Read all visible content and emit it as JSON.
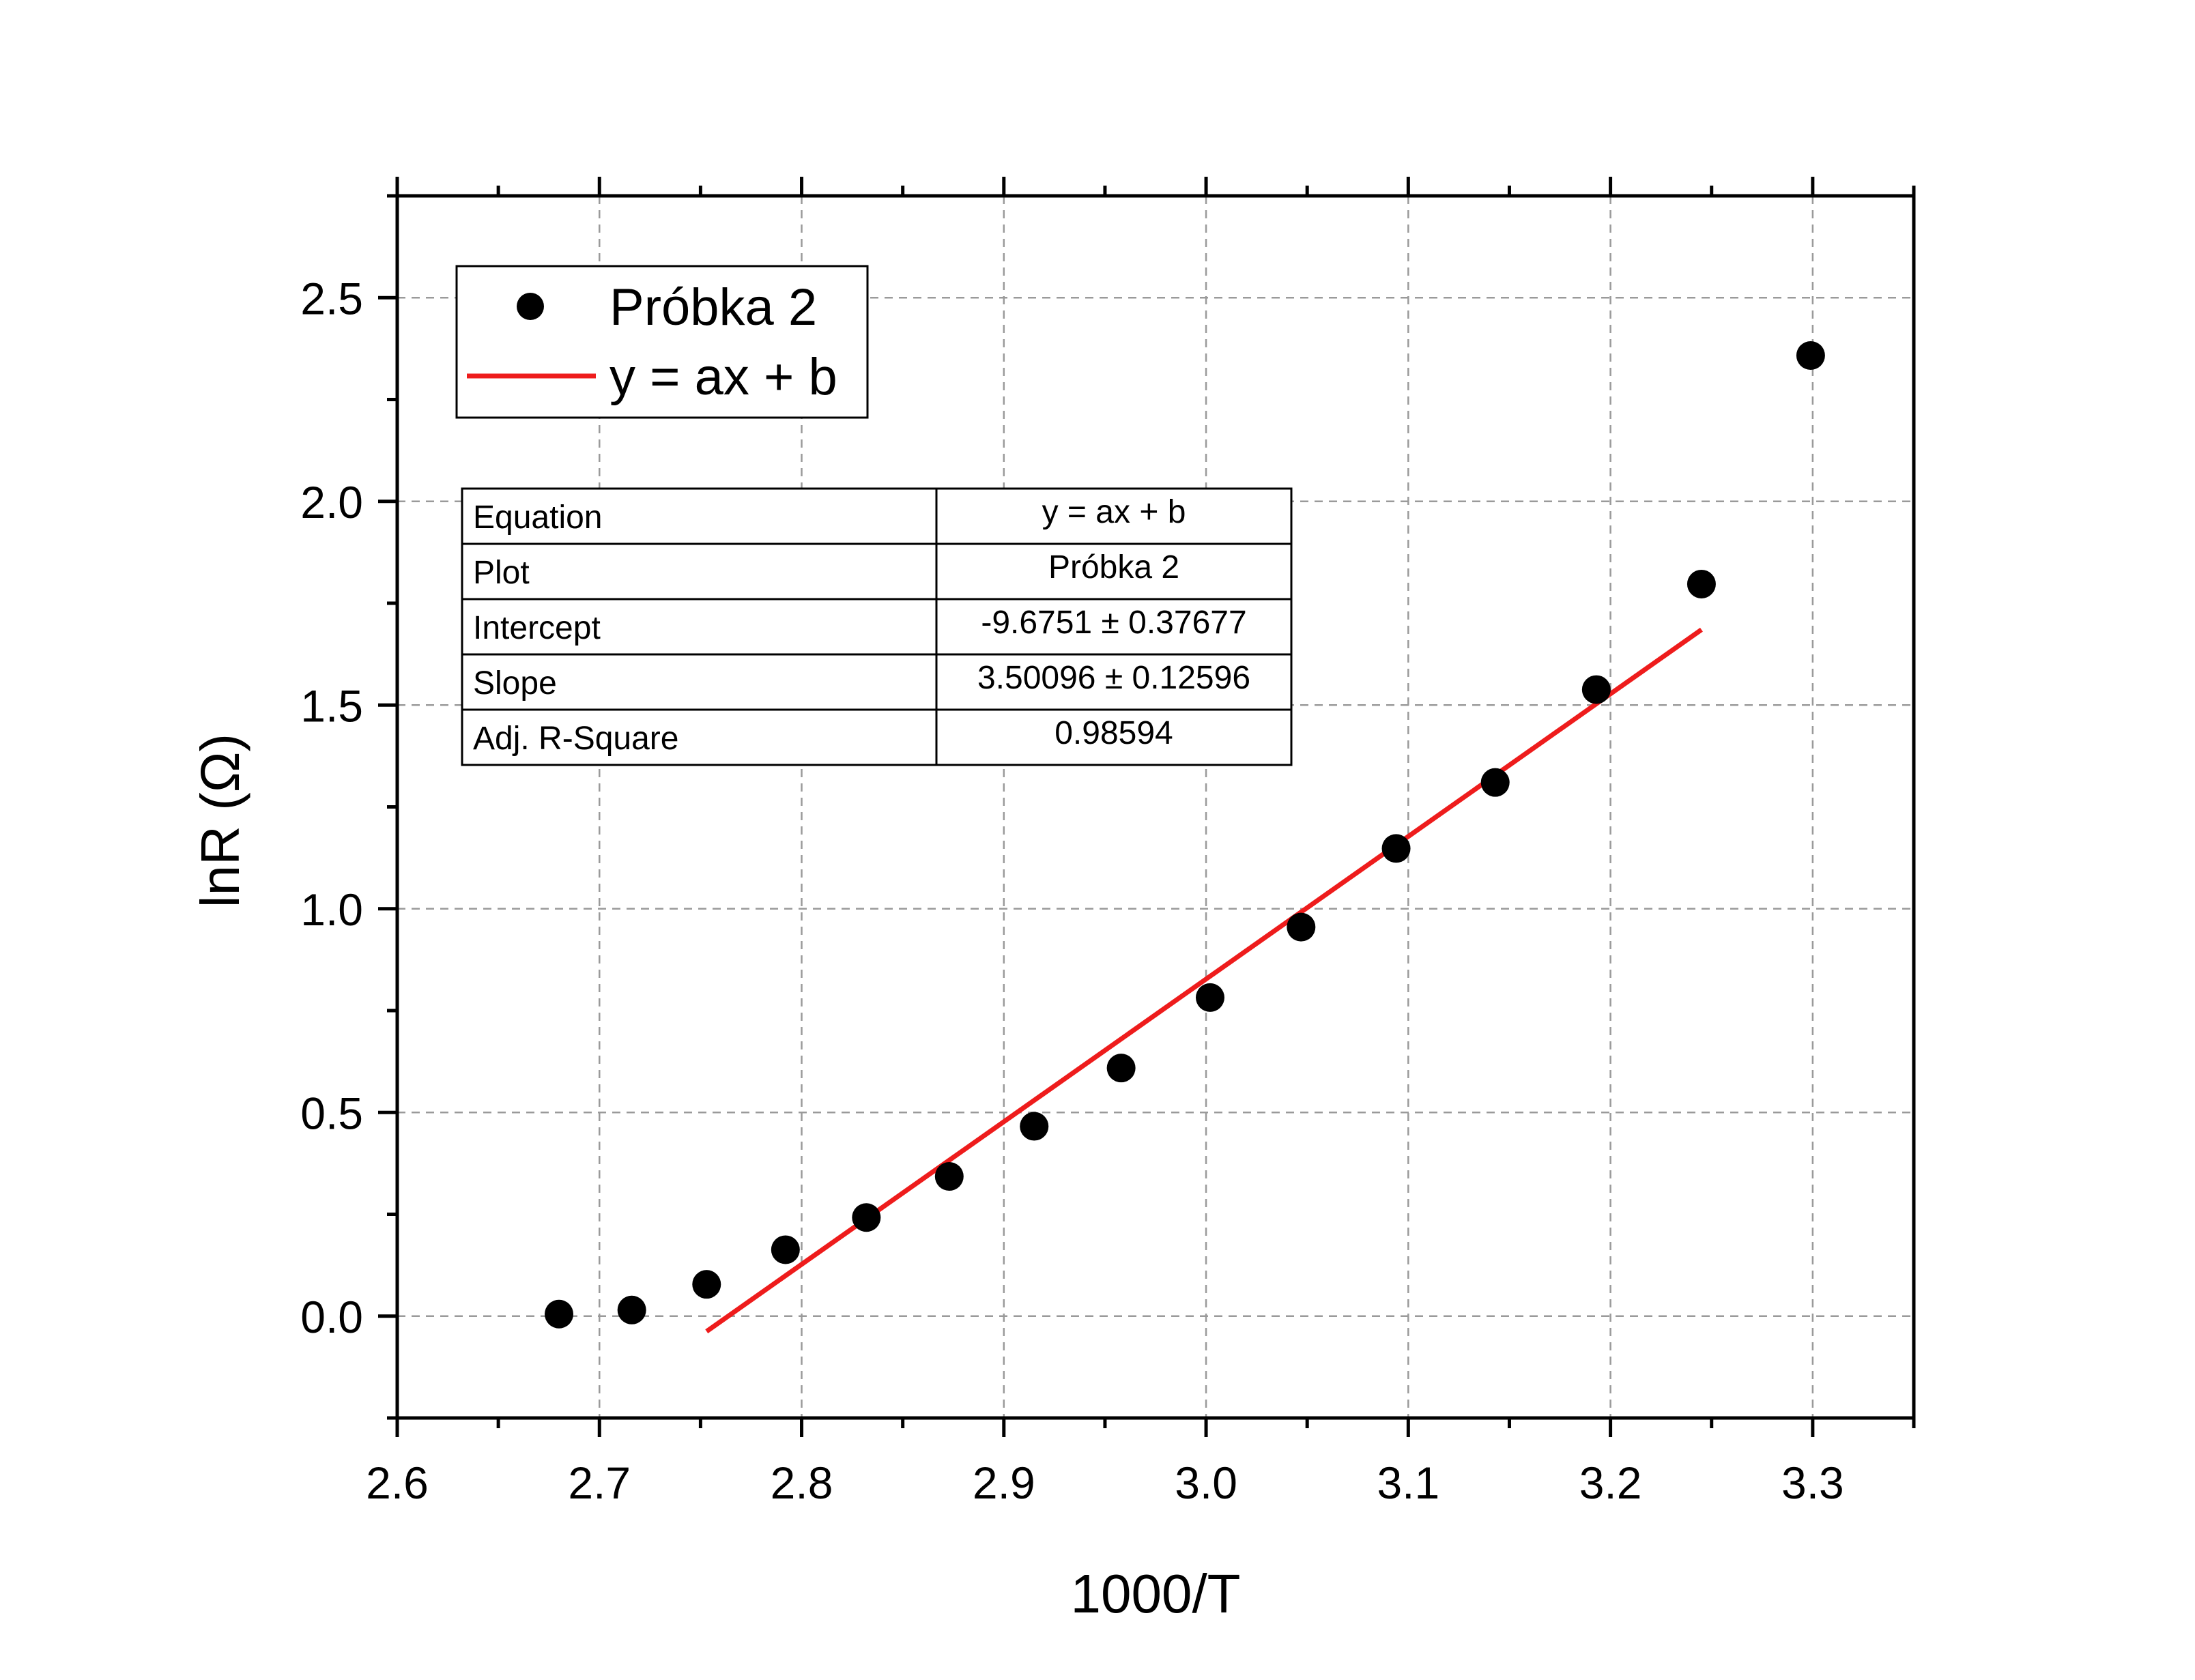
{
  "chart_data": {
    "type": "scatter",
    "title": "",
    "xlabel": "1000/T",
    "ylabel": "lnR (Ω)",
    "xlim": [
      2.6,
      3.35
    ],
    "ylim": [
      -0.25,
      2.75
    ],
    "grid": true,
    "x_ticks": [
      "2.6",
      "2.7",
      "2.8",
      "2.9",
      "3.0",
      "3.1",
      "3.2",
      "3.3"
    ],
    "y_ticks": [
      "0.0",
      "0.5",
      "1.0",
      "1.5",
      "2.0",
      "2.5"
    ],
    "legend": {
      "placement": "top-left",
      "entries": [
        {
          "label": "Próbka 2",
          "marker": "circle",
          "color": "#000000"
        },
        {
          "label": "y = ax + b",
          "marker": "line",
          "color": "#ee1c1c"
        }
      ]
    },
    "series": [
      {
        "name": "Próbka 2",
        "kind": "scatter",
        "color": "#000000",
        "x": [
          2.68,
          2.716,
          2.753,
          2.792,
          2.832,
          2.873,
          2.915,
          2.958,
          3.002,
          3.047,
          3.094,
          3.143,
          3.193,
          3.245,
          3.299
        ],
        "y": [
          0.005,
          0.015,
          0.078,
          0.163,
          0.242,
          0.343,
          0.466,
          0.609,
          0.782,
          0.955,
          1.148,
          1.31,
          1.538,
          1.797,
          2.358
        ]
      },
      {
        "name": "y = ax + b",
        "kind": "line",
        "color": "#ee1c1c",
        "x": [
          2.753,
          3.245
        ],
        "y": [
          -0.0374,
          1.6851
        ]
      }
    ],
    "fit_table": {
      "rows": [
        {
          "label": "Equation",
          "value": "y = ax + b"
        },
        {
          "label": "Plot",
          "value": "Próbka 2"
        },
        {
          "label": "Intercept",
          "value": "-9.6751 ± 0.37677"
        },
        {
          "label": "Slope",
          "value": "3.50096 ± 0.12596"
        },
        {
          "label": "Adj. R-Square",
          "value": "0.98594"
        }
      ]
    }
  }
}
